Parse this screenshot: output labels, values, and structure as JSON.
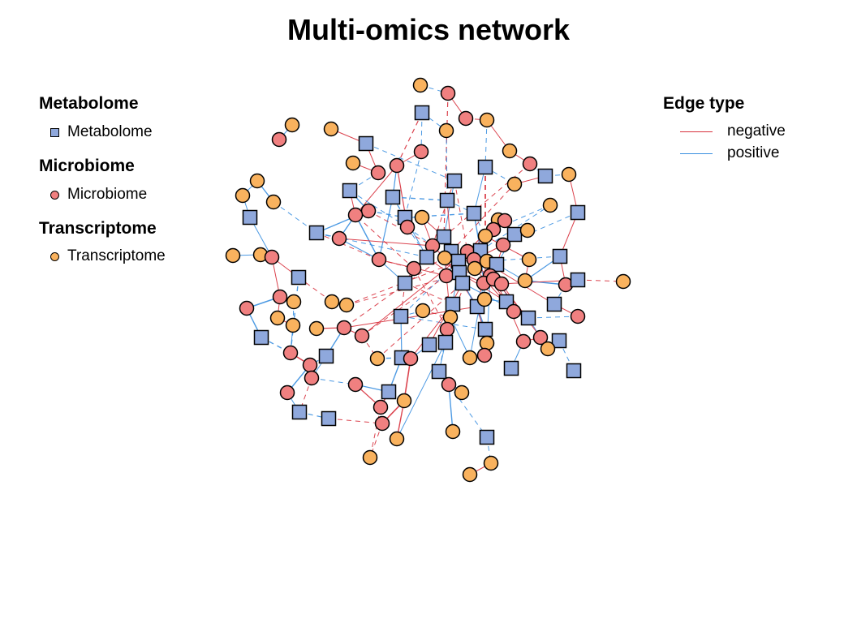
{
  "title": "Multi-omics network",
  "colors": {
    "metabolome": "#8FA8DC",
    "microbiome": "#F08080",
    "transcriptome": "#F9B25E",
    "negative": "#D7303C",
    "positive": "#3A8FE0"
  },
  "legend_nodes": [
    {
      "title": "Metabolome",
      "label": "Metabolome",
      "shape": "square"
    },
    {
      "title": "Microbiome",
      "label": "Microbiome",
      "shape": "circle"
    },
    {
      "title": "Transcriptome",
      "label": "Transcriptome",
      "shape": "circle"
    }
  ],
  "legend_edges": {
    "title": "Edge type",
    "items": [
      {
        "label": "negative",
        "type": "negative"
      },
      {
        "label": "positive",
        "type": "positive"
      }
    ]
  }
}
